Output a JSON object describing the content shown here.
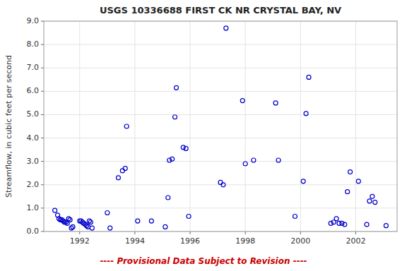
{
  "chart_data": {
    "type": "scatter",
    "title": "USGS 10336688 FIRST CK NR CRYSTAL BAY, NV",
    "subtitle": "---- Provisional Data Subject to Revision ----",
    "ylabel": "Streamflow, in cubic feet per second",
    "color": "#0000cc",
    "marker": "circle",
    "grid": true,
    "xlim": [
      1990.7,
      2003.5
    ],
    "xticks": [
      1992,
      1994,
      1996,
      1998,
      2000,
      2002
    ],
    "ylim": [
      0.0,
      9.0
    ],
    "yticks": [
      {
        "value": 0.0,
        "label": "0.0"
      },
      {
        "value": 1.0,
        "label": "1.0"
      },
      {
        "value": 2.0,
        "label": "2.0"
      },
      {
        "value": 3.0,
        "label": "3.0"
      },
      {
        "value": 4.0,
        "label": "4.0"
      },
      {
        "value": 5.0,
        "label": "5.0"
      },
      {
        "value": 6.0,
        "label": "6.0"
      },
      {
        "value": 7.0,
        "label": "7.0"
      },
      {
        "value": 8.0,
        "label": "8.0"
      },
      {
        "value": 9.0,
        "label": "9.0"
      }
    ],
    "x": [
      1991.1,
      1991.2,
      1991.25,
      1991.3,
      1991.35,
      1991.4,
      1991.45,
      1991.5,
      1991.55,
      1991.6,
      1991.65,
      1991.7,
      1991.75,
      1992.0,
      1992.05,
      1992.1,
      1992.15,
      1992.2,
      1992.25,
      1992.3,
      1992.35,
      1992.4,
      1992.45,
      1993.0,
      1993.1,
      1993.4,
      1993.55,
      1993.65,
      1993.7,
      1994.1,
      1994.6,
      1995.1,
      1995.2,
      1995.25,
      1995.35,
      1995.45,
      1995.5,
      1995.75,
      1995.85,
      1995.95,
      1997.1,
      1997.2,
      1997.3,
      1997.9,
      1998.0,
      1998.3,
      1999.1,
      1999.2,
      1999.8,
      2000.1,
      2000.2,
      2000.3,
      2001.1,
      2001.2,
      2001.3,
      2001.4,
      2001.5,
      2001.6,
      2001.7,
      2001.8,
      2002.1,
      2002.4,
      2002.5,
      2002.6,
      2002.7,
      2003.1
    ],
    "values": [
      0.9,
      0.7,
      0.55,
      0.5,
      0.5,
      0.45,
      0.4,
      0.4,
      0.35,
      0.55,
      0.5,
      0.15,
      0.2,
      0.45,
      0.45,
      0.4,
      0.35,
      0.3,
      0.25,
      0.2,
      0.45,
      0.4,
      0.15,
      0.8,
      0.15,
      2.3,
      2.6,
      2.7,
      4.5,
      0.45,
      0.45,
      0.2,
      1.45,
      3.05,
      3.1,
      4.9,
      6.15,
      3.6,
      3.55,
      0.65,
      2.1,
      2.0,
      8.7,
      5.6,
      2.9,
      3.05,
      5.5,
      3.05,
      0.65,
      2.15,
      5.05,
      6.6,
      0.35,
      0.4,
      0.55,
      0.35,
      0.35,
      0.3,
      1.7,
      2.55,
      2.15,
      0.3,
      1.3,
      1.5,
      1.25,
      0.25
    ]
  }
}
